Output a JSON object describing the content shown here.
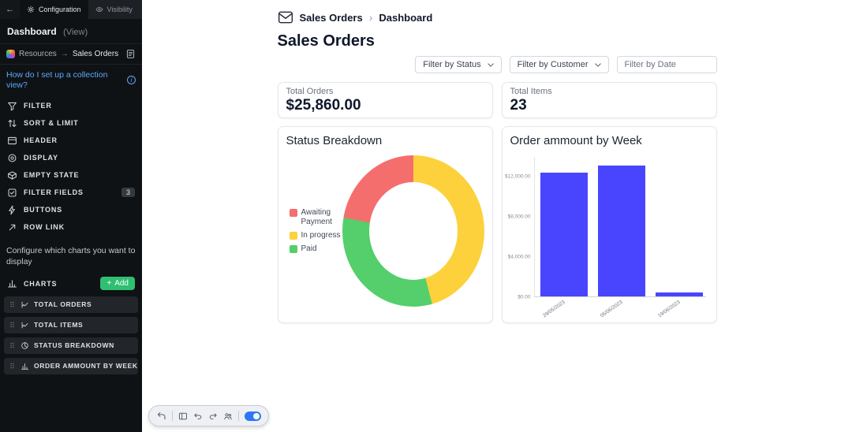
{
  "colors": {
    "accent_green": "#2fbf71",
    "link_blue": "#5aa9ff",
    "bar_blue": "#4945ff",
    "toggle_blue": "#2e77f2"
  },
  "sidebar": {
    "back_icon": "←",
    "tabs": [
      {
        "label": "Configuration",
        "icon": "gear-icon",
        "active": true
      },
      {
        "label": "Visibility",
        "icon": "eye-icon",
        "active": false
      }
    ],
    "header": {
      "title": "Dashboard",
      "suffix": "(View)"
    },
    "resources": {
      "label": "Resources",
      "arrow": "→",
      "target": "Sales Orders"
    },
    "help": {
      "text": "How do I set up a collection view?"
    },
    "menu_items": [
      {
        "label": "Filter",
        "icon": "funnel-icon"
      },
      {
        "label": "Sort & Limit",
        "icon": "sort-icon"
      },
      {
        "label": "Header",
        "icon": "header-icon"
      },
      {
        "label": "Display",
        "icon": "display-icon"
      },
      {
        "label": "Empty State",
        "icon": "empty-state-icon"
      },
      {
        "label": "Filter Fields",
        "icon": "filter-fields-icon",
        "badge": "3"
      },
      {
        "label": "Buttons",
        "icon": "buttons-icon"
      },
      {
        "label": "Row Link",
        "icon": "row-link-icon"
      }
    ],
    "charts_hint": "Configure which charts you want to display",
    "charts_section": {
      "label": "Charts",
      "icon": "bar-chart-icon",
      "add_button": "Add"
    },
    "chart_items": [
      {
        "label": "Total Orders",
        "icon": "metric-icon"
      },
      {
        "label": "Total Items",
        "icon": "metric-icon"
      },
      {
        "label": "Status Breakdown",
        "icon": "pie-chart-icon"
      },
      {
        "label": "Order ammount by Week",
        "icon": "bar-chart-icon"
      }
    ]
  },
  "main": {
    "breadcrumb": {
      "root": "Sales Orders",
      "separator": "›",
      "current": "Dashboard"
    },
    "title": "Sales Orders",
    "filters": [
      {
        "type": "select",
        "label": "Filter by Status"
      },
      {
        "type": "select",
        "label": "Filter by Customer"
      },
      {
        "type": "input",
        "placeholder": "Filter by Date"
      }
    ],
    "stats": [
      {
        "label": "Total Orders",
        "value": "$25,860.00"
      },
      {
        "label": "Total Items",
        "value": "23"
      }
    ]
  },
  "chart_data": [
    {
      "type": "pie",
      "donut": true,
      "title": "Status Breakdown",
      "labels": [
        "Awaiting Payment",
        "In progress",
        "Paid"
      ],
      "values": [
        22,
        46,
        32
      ],
      "colors": [
        "#f56e6e",
        "#fcd13b",
        "#54cf6b"
      ],
      "slice_order": [
        1,
        2,
        0
      ],
      "legend_position": "left"
    },
    {
      "type": "bar",
      "title": "Order ammount by Week",
      "categories": [
        "29/05/2023",
        "05/06/2023",
        "19/06/2023"
      ],
      "values": [
        12400,
        13100,
        360
      ],
      "y_ticks": [
        "$0.00",
        "$4,000.00",
        "$8,000.00",
        "$12,000.00"
      ],
      "y_tick_values": [
        0,
        4000,
        8000,
        12000
      ],
      "ylim": [
        0,
        14000
      ],
      "xlabel": "",
      "ylabel": "",
      "grid": false,
      "bar_color": "#4945ff"
    }
  ],
  "toolbar": {
    "icons": [
      "undo-arrow-icon",
      "panel-icon",
      "undo-icon",
      "redo-icon",
      "users-icon"
    ],
    "toggle_on": true
  }
}
